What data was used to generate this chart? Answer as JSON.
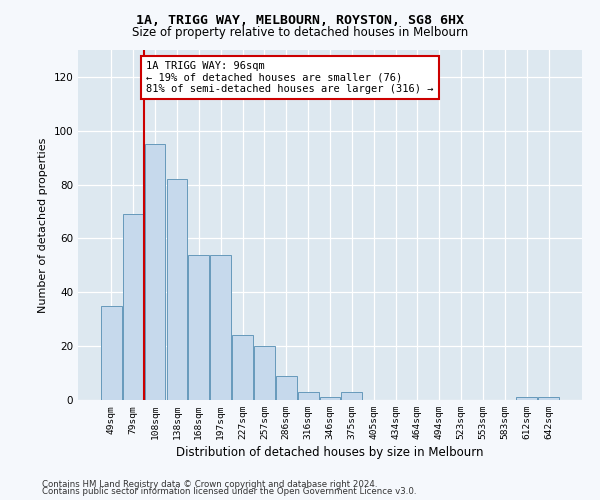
{
  "title1": "1A, TRIGG WAY, MELBOURN, ROYSTON, SG8 6HX",
  "title2": "Size of property relative to detached houses in Melbourn",
  "xlabel": "Distribution of detached houses by size in Melbourn",
  "ylabel": "Number of detached properties",
  "categories": [
    "49sqm",
    "79sqm",
    "108sqm",
    "138sqm",
    "168sqm",
    "197sqm",
    "227sqm",
    "257sqm",
    "286sqm",
    "316sqm",
    "346sqm",
    "375sqm",
    "405sqm",
    "434sqm",
    "464sqm",
    "494sqm",
    "523sqm",
    "553sqm",
    "583sqm",
    "612sqm",
    "642sqm"
  ],
  "bar_heights": [
    35,
    69,
    95,
    82,
    54,
    54,
    24,
    20,
    9,
    3,
    1,
    3,
    0,
    0,
    0,
    0,
    0,
    0,
    0,
    1,
    1
  ],
  "bar_color": "#c6d9ec",
  "bar_edge_color": "#6699bb",
  "vline_color": "#cc0000",
  "vline_x": 1.5,
  "annotation_title": "1A TRIGG WAY: 96sqm",
  "annotation_line1": "← 19% of detached houses are smaller (76)",
  "annotation_line2": "81% of semi-detached houses are larger (316) →",
  "annotation_box_edge": "#cc0000",
  "ylim": [
    0,
    130
  ],
  "yticks": [
    0,
    20,
    40,
    60,
    80,
    100,
    120
  ],
  "footer1": "Contains HM Land Registry data © Crown copyright and database right 2024.",
  "footer2": "Contains public sector information licensed under the Open Government Licence v3.0.",
  "fig_bg_color": "#f5f8fc",
  "plot_bg_color": "#dde8f0"
}
